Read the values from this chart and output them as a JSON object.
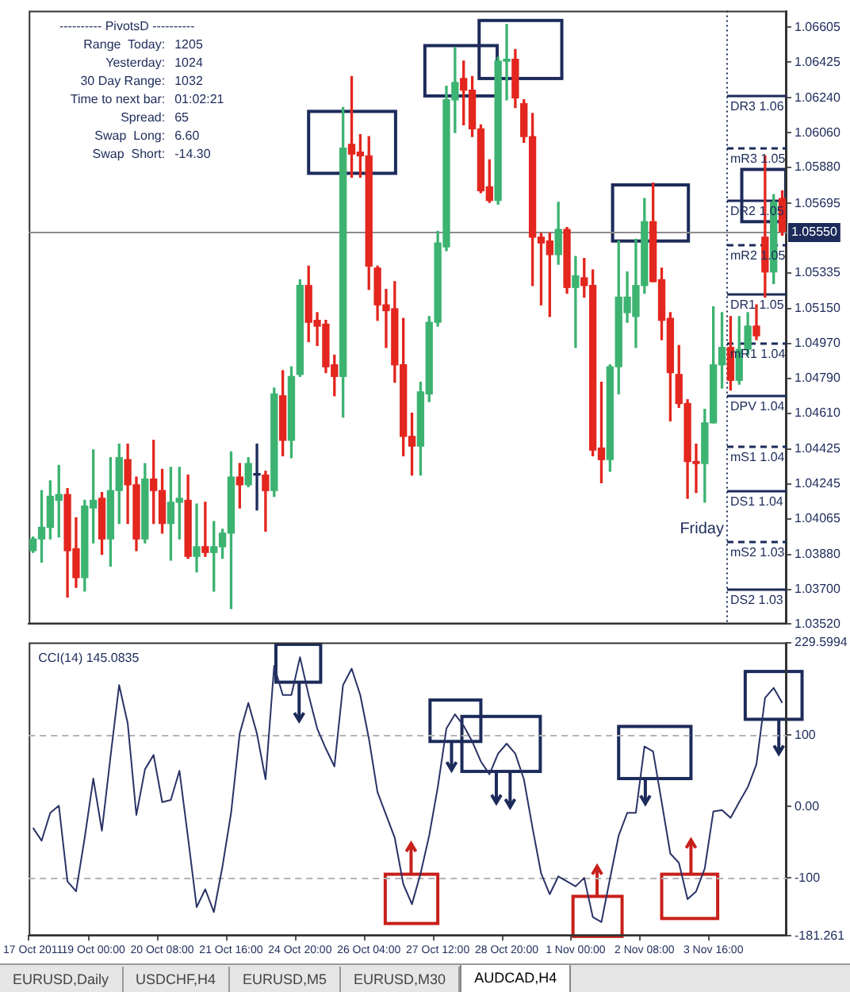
{
  "chart_data": [
    {
      "type": "candlestick",
      "categories": [
        null,
        null,
        null,
        null,
        null,
        null,
        null,
        null,
        null,
        null,
        null,
        null,
        null,
        null,
        null,
        null,
        null,
        null,
        null,
        null,
        null,
        null,
        null,
        null,
        null,
        null,
        null,
        null,
        null,
        null,
        null,
        null,
        null,
        null,
        null,
        null,
        null,
        null,
        null,
        null,
        null,
        null,
        null,
        null,
        null,
        null,
        null,
        null,
        null,
        null,
        null,
        null,
        null,
        null,
        null,
        null,
        null,
        null,
        null,
        null,
        null,
        null,
        null,
        null,
        null,
        null,
        null,
        null,
        null,
        null,
        null,
        null,
        null,
        null,
        null,
        null,
        null,
        null,
        null,
        null,
        null,
        null,
        null,
        null,
        null,
        null,
        null,
        null
      ],
      "ohlc": [
        [
          1.039,
          1.0397,
          1.0389,
          1.0396
        ],
        [
          1.0396,
          1.0421,
          1.0384,
          1.0402
        ],
        [
          1.0402,
          1.0426,
          1.0396,
          1.0418
        ],
        [
          1.0416,
          1.0434,
          1.0397,
          1.0419
        ],
        [
          1.0419,
          1.0422,
          1.0366,
          1.039
        ],
        [
          1.0391,
          1.0407,
          1.0371,
          1.0376
        ],
        [
          1.0376,
          1.0416,
          1.0369,
          1.0413
        ],
        [
          1.0412,
          1.0442,
          1.0394,
          1.0416
        ],
        [
          1.0417,
          1.042,
          1.0388,
          1.0396
        ],
        [
          1.0396,
          1.0438,
          1.0382,
          1.0421
        ],
        [
          1.0421,
          1.0445,
          1.0404,
          1.0438
        ],
        [
          1.0437,
          1.0445,
          1.0404,
          1.0424
        ],
        [
          1.0424,
          1.0428,
          1.039,
          1.0396
        ],
        [
          1.0396,
          1.0435,
          1.0394,
          1.0427
        ],
        [
          1.0427,
          1.0447,
          1.0404,
          1.0421
        ],
        [
          1.0421,
          1.0432,
          1.0399,
          1.0404
        ],
        [
          1.0404,
          1.0433,
          1.0385,
          1.0415
        ],
        [
          1.0415,
          1.0433,
          1.0396,
          1.0417
        ],
        [
          1.0416,
          1.0429,
          1.0386,
          1.0387
        ],
        [
          1.0387,
          1.0414,
          1.0379,
          1.0392
        ],
        [
          1.0392,
          1.0415,
          1.0387,
          1.0389
        ],
        [
          1.0389,
          1.0405,
          1.0369,
          1.0392
        ],
        [
          1.0392,
          1.0401,
          1.0386,
          1.0399
        ],
        [
          1.0399,
          1.0441,
          1.036,
          1.0428
        ],
        [
          1.0428,
          1.0435,
          1.0412,
          1.0424
        ],
        [
          1.0424,
          1.0438,
          1.0423,
          1.0435
        ],
        [
          1.0429,
          1.0445,
          1.0411,
          1.0429
        ],
        [
          1.0429,
          1.0431,
          1.04,
          1.0421
        ],
        [
          1.0421,
          1.0474,
          1.0418,
          1.0471
        ],
        [
          1.047,
          1.0483,
          1.0439,
          1.0447
        ],
        [
          1.0447,
          1.0485,
          1.0438,
          1.048
        ],
        [
          1.0481,
          1.053,
          1.048,
          1.0527
        ],
        [
          1.0527,
          1.0537,
          1.0498,
          1.0508
        ],
        [
          1.0509,
          1.0513,
          1.0496,
          1.0506
        ],
        [
          1.0507,
          1.0509,
          1.0482,
          1.0485
        ],
        [
          1.0486,
          1.0491,
          1.047,
          1.048
        ],
        [
          1.048,
          1.0619,
          1.0459,
          1.0598
        ],
        [
          1.06,
          1.0635,
          1.0583,
          1.0595
        ],
        [
          1.0596,
          1.0605,
          1.0583,
          1.0594
        ],
        [
          1.0594,
          1.0604,
          1.0525,
          1.0537
        ],
        [
          1.0536,
          1.0537,
          1.0509,
          1.0517
        ],
        [
          1.0517,
          1.0525,
          1.0495,
          1.0514
        ],
        [
          1.0515,
          1.0529,
          1.0477,
          1.0486
        ],
        [
          1.0486,
          1.051,
          1.0439,
          1.0449
        ],
        [
          1.0449,
          1.0461,
          1.0429,
          1.0444
        ],
        [
          1.0444,
          1.0477,
          1.0429,
          1.0472
        ],
        [
          1.0471,
          1.0511,
          1.0467,
          1.0508
        ],
        [
          1.0508,
          1.0555,
          1.0506,
          1.0549
        ],
        [
          1.0547,
          1.063,
          1.0545,
          1.0623
        ],
        [
          1.0623,
          1.065,
          1.0606,
          1.0632
        ],
        [
          1.0634,
          1.0643,
          1.061,
          1.0628
        ],
        [
          1.0628,
          1.0635,
          1.0604,
          1.0608
        ],
        [
          1.0608,
          1.061,
          1.0575,
          1.0576
        ],
        [
          1.0578,
          1.0592,
          1.057,
          1.0571
        ],
        [
          1.0571,
          1.0645,
          1.0569,
          1.0643
        ],
        [
          1.0643,
          1.0662,
          1.0623,
          1.0644
        ],
        [
          1.0644,
          1.0649,
          1.0619,
          1.0624
        ],
        [
          1.0621,
          1.0623,
          1.0601,
          1.0604
        ],
        [
          1.0604,
          1.0616,
          1.0527,
          1.0552
        ],
        [
          1.0552,
          1.0554,
          1.0517,
          1.0549
        ],
        [
          1.055,
          1.0554,
          1.0511,
          1.0543
        ],
        [
          1.0543,
          1.057,
          1.0538,
          1.0556
        ],
        [
          1.0556,
          1.0557,
          1.0523,
          1.0526
        ],
        [
          1.0526,
          1.0542,
          1.0495,
          1.0532
        ],
        [
          1.0531,
          1.0541,
          1.0521,
          1.0527
        ],
        [
          1.0527,
          1.0535,
          1.0439,
          1.0442
        ],
        [
          1.0443,
          1.0477,
          1.0425,
          1.0437
        ],
        [
          1.0437,
          1.0486,
          1.0431,
          1.0485
        ],
        [
          1.0485,
          1.055,
          1.0471,
          1.0521
        ],
        [
          1.0513,
          1.0534,
          1.0508,
          1.0521
        ],
        [
          1.0511,
          1.0551,
          1.0495,
          1.0527
        ],
        [
          1.0527,
          1.0572,
          1.0523,
          1.056
        ],
        [
          1.056,
          1.058,
          1.0529,
          1.0529
        ],
        [
          1.053,
          1.0536,
          1.0499,
          1.0509
        ],
        [
          1.051,
          1.0513,
          1.0457,
          1.0482
        ],
        [
          1.0481,
          1.0496,
          1.0464,
          1.0466
        ],
        [
          1.0466,
          1.0468,
          1.0417,
          1.0436
        ],
        [
          1.0436,
          1.0445,
          1.042,
          1.0435
        ],
        [
          1.0435,
          1.0463,
          1.0415,
          1.0456
        ],
        [
          1.0456,
          1.0516,
          1.0456,
          1.0486
        ],
        [
          1.0486,
          1.0513,
          1.0474,
          1.0495
        ],
        [
          1.0495,
          1.0511,
          1.0473,
          1.0478
        ],
        [
          1.0478,
          1.0511,
          1.0476,
          1.0494
        ],
        [
          1.0494,
          1.0513,
          1.0491,
          1.0506
        ],
        [
          1.0506,
          1.0517,
          1.0499,
          1.0501
        ],
        [
          1.0552,
          1.0594,
          1.0521,
          1.0534
        ],
        [
          1.0534,
          1.0574,
          1.0528,
          1.057
        ],
        [
          1.0572,
          1.0576,
          1.0553,
          1.0555
        ]
      ],
      "colors": [
        "#3cb371",
        "#3cb371",
        "#3cb371",
        "#3cb371",
        "#e3261e",
        "#e3261e",
        "#3cb371",
        "#3cb371",
        "#e3261e",
        "#3cb371",
        "#3cb371",
        "#e3261e",
        "#e3261e",
        "#3cb371",
        "#e3261e",
        "#e3261e",
        "#3cb371",
        "#3cb371",
        "#e3261e",
        "#3cb371",
        "#e3261e",
        "#3cb371",
        "#3cb371",
        "#3cb371",
        "#e3261e",
        "#3cb371",
        "#1c2b5a",
        "#e3261e",
        "#3cb371",
        "#e3261e",
        "#3cb371",
        "#3cb371",
        "#e3261e",
        "#e3261e",
        "#e3261e",
        "#e3261e",
        "#3cb371",
        "#e3261e",
        "#e3261e",
        "#e3261e",
        "#e3261e",
        "#e3261e",
        "#e3261e",
        "#e3261e",
        "#e3261e",
        "#3cb371",
        "#3cb371",
        "#3cb371",
        "#3cb371",
        "#3cb371",
        "#e3261e",
        "#e3261e",
        "#e3261e",
        "#e3261e",
        "#3cb371",
        "#3cb371",
        "#e3261e",
        "#e3261e",
        "#e3261e",
        "#e3261e",
        "#e3261e",
        "#3cb371",
        "#e3261e",
        "#3cb371",
        "#e3261e",
        "#e3261e",
        "#e3261e",
        "#3cb371",
        "#3cb371",
        "#3cb371",
        "#3cb371",
        "#3cb371",
        "#e3261e",
        "#e3261e",
        "#e3261e",
        "#e3261e",
        "#e3261e",
        "#e3261e",
        "#3cb371",
        "#3cb371",
        "#3cb371",
        "#e3261e",
        "#3cb371",
        "#3cb371",
        "#e3261e",
        "#e3261e",
        "#3cb371",
        "#e3261e"
      ],
      "ylim": [
        1.0352,
        1.0669
      ],
      "yticks": [
        {
          "value": 1.06605,
          "label": "1.06605"
        },
        {
          "value": 1.06425,
          "label": "1.06425"
        },
        {
          "value": 1.0624,
          "label": "1.06240"
        },
        {
          "value": 1.0606,
          "label": "1.06060"
        },
        {
          "value": 1.0588,
          "label": "1.05880"
        },
        {
          "value": 1.05695,
          "label": "1.05695"
        },
        {
          "value": 1.05335,
          "label": "1.05335"
        },
        {
          "value": 1.0515,
          "label": "1.05150"
        },
        {
          "value": 1.0497,
          "label": "1.04970"
        },
        {
          "value": 1.0479,
          "label": "1.04790"
        },
        {
          "value": 1.0461,
          "label": "1.04610"
        },
        {
          "value": 1.04425,
          "label": "1.04425"
        },
        {
          "value": 1.04245,
          "label": "1.04245"
        },
        {
          "value": 1.04065,
          "label": "1.04065"
        },
        {
          "value": 1.0388,
          "label": "1.03880"
        },
        {
          "value": 1.037,
          "label": "1.03700"
        },
        {
          "value": 1.0352,
          "label": "1.03520"
        }
      ],
      "tick_labels": "y",
      "ref_lines": [
        {
          "axis": "y",
          "value": 1.0555,
          "label": "1.05550",
          "color": "#8c8c8c",
          "line_style": "solid"
        },
        {
          "axis": "y",
          "value": 1.0625,
          "label": "DR3 1.06",
          "color": "#1c2b5a",
          "line_style": "solid"
        },
        {
          "axis": "y",
          "value": 1.0598,
          "label": "mR3 1.05",
          "color": "#1c2b5a",
          "line_style": "dashed"
        },
        {
          "axis": "y",
          "value": 1.0571,
          "label": "DR2 1.05",
          "color": "#1c2b5a",
          "line_style": "solid"
        },
        {
          "axis": "y",
          "value": 1.0548,
          "label": "mR2 1.05",
          "color": "#1c2b5a",
          "line_style": "dashed"
        },
        {
          "axis": "y",
          "value": 1.0523,
          "label": "DR1 1.05",
          "color": "#1c2b5a",
          "line_style": "solid"
        },
        {
          "axis": "y",
          "value": 1.0497,
          "label": "mR1 1.04",
          "color": "#1c2b5a",
          "line_style": "dashed"
        },
        {
          "axis": "y",
          "value": 1.047,
          "label": "DPV 1.04",
          "color": "#1c2b5a",
          "line_style": "solid"
        },
        {
          "axis": "y",
          "value": 1.0444,
          "label": "mS1 1.04",
          "color": "#1c2b5a",
          "line_style": "dashed"
        },
        {
          "axis": "y",
          "value": 1.0421,
          "label": "DS1 1.04",
          "color": "#1c2b5a",
          "line_style": "solid"
        },
        {
          "axis": "y",
          "value": 1.0395,
          "label": "mS2 1.03",
          "color": "#1c2b5a",
          "line_style": "dashed"
        },
        {
          "axis": "y",
          "value": 1.037,
          "label": "DS2 1.03",
          "color": "#1c2b5a",
          "line_style": "solid"
        }
      ],
      "annotations": [
        "---------- PivotsD ----------",
        "Range  Today: 1205",
        "Yesterday: 1024",
        "30 Day Range: 1032",
        "Time to next bar: 01:02:21",
        "Spread: 65",
        "Swap  Long: 6.60",
        "Swap  Short: -14.30",
        "Friday"
      ]
    },
    {
      "type": "line",
      "title": "CCI(14) 145.0835",
      "categories": [
        "17 Oct 2011",
        null,
        null,
        null,
        null,
        null,
        null,
        "19 Oct 00:00",
        null,
        null,
        null,
        null,
        null,
        null,
        null,
        "20 Oct 08:00",
        null,
        null,
        null,
        null,
        null,
        null,
        null,
        "21 Oct 16:00",
        null,
        null,
        null,
        null,
        null,
        null,
        null,
        "24 Oct 20:00",
        null,
        null,
        null,
        null,
        null,
        null,
        null,
        "26 Oct 04:00",
        null,
        null,
        null,
        null,
        null,
        null,
        null,
        "27 Oct 12:00",
        null,
        null,
        null,
        null,
        null,
        null,
        null,
        "28 Oct 20:00",
        null,
        null,
        null,
        null,
        null,
        null,
        null,
        "1 Nov 00:00",
        null,
        null,
        null,
        null,
        null,
        null,
        null,
        "2 Nov 08:00",
        null,
        null,
        null,
        null,
        null,
        null,
        null,
        "3 Nov 16:00",
        null,
        null,
        null,
        null,
        null,
        null,
        null,
        null
      ],
      "values": [
        -30,
        -48,
        -9,
        1,
        -105,
        -119,
        -44,
        39,
        -34,
        70,
        170,
        116,
        -12,
        52,
        72,
        6,
        9,
        50,
        -44,
        -141,
        -116,
        -148,
        -84,
        -9,
        102,
        145,
        102,
        38,
        197,
        156,
        156,
        209,
        156,
        109,
        81,
        56,
        170,
        193,
        156,
        95,
        20,
        -12,
        -44,
        -109,
        -137,
        -94,
        -41,
        27,
        109,
        129,
        113,
        91,
        63,
        45,
        74,
        88,
        74,
        38,
        -30,
        -94,
        -123,
        -98,
        -105,
        -112,
        -100,
        -155,
        -162,
        -101,
        -41,
        -9,
        -9,
        84,
        77,
        6,
        -66,
        -79,
        -130,
        -119,
        -87,
        -7,
        -5,
        -16,
        6,
        27,
        59,
        152,
        166,
        145.0835
      ],
      "color": "#2a3366",
      "ylim": [
        -181.261,
        229.5994
      ],
      "yticks": [
        {
          "value": 229.5994,
          "label": "229.5994"
        },
        100,
        {
          "value": 0,
          "label": "0.00"
        },
        -100,
        {
          "value": -181.261,
          "label": "-181.261"
        }
      ],
      "ref_lines": [
        {
          "axis": "y",
          "value": 100,
          "color": "#b4b4b4",
          "line_style": "dashed"
        },
        {
          "axis": "y",
          "value": -100,
          "color": "#b4b4b4",
          "line_style": "dashed"
        }
      ]
    },
    {
      "type": "other",
      "annotations": [
        "EURUSD,Daily",
        "USDCHF,H4",
        "EURUSD,M5",
        "EURUSD,M30",
        "AUDCAD,H4"
      ]
    }
  ]
}
